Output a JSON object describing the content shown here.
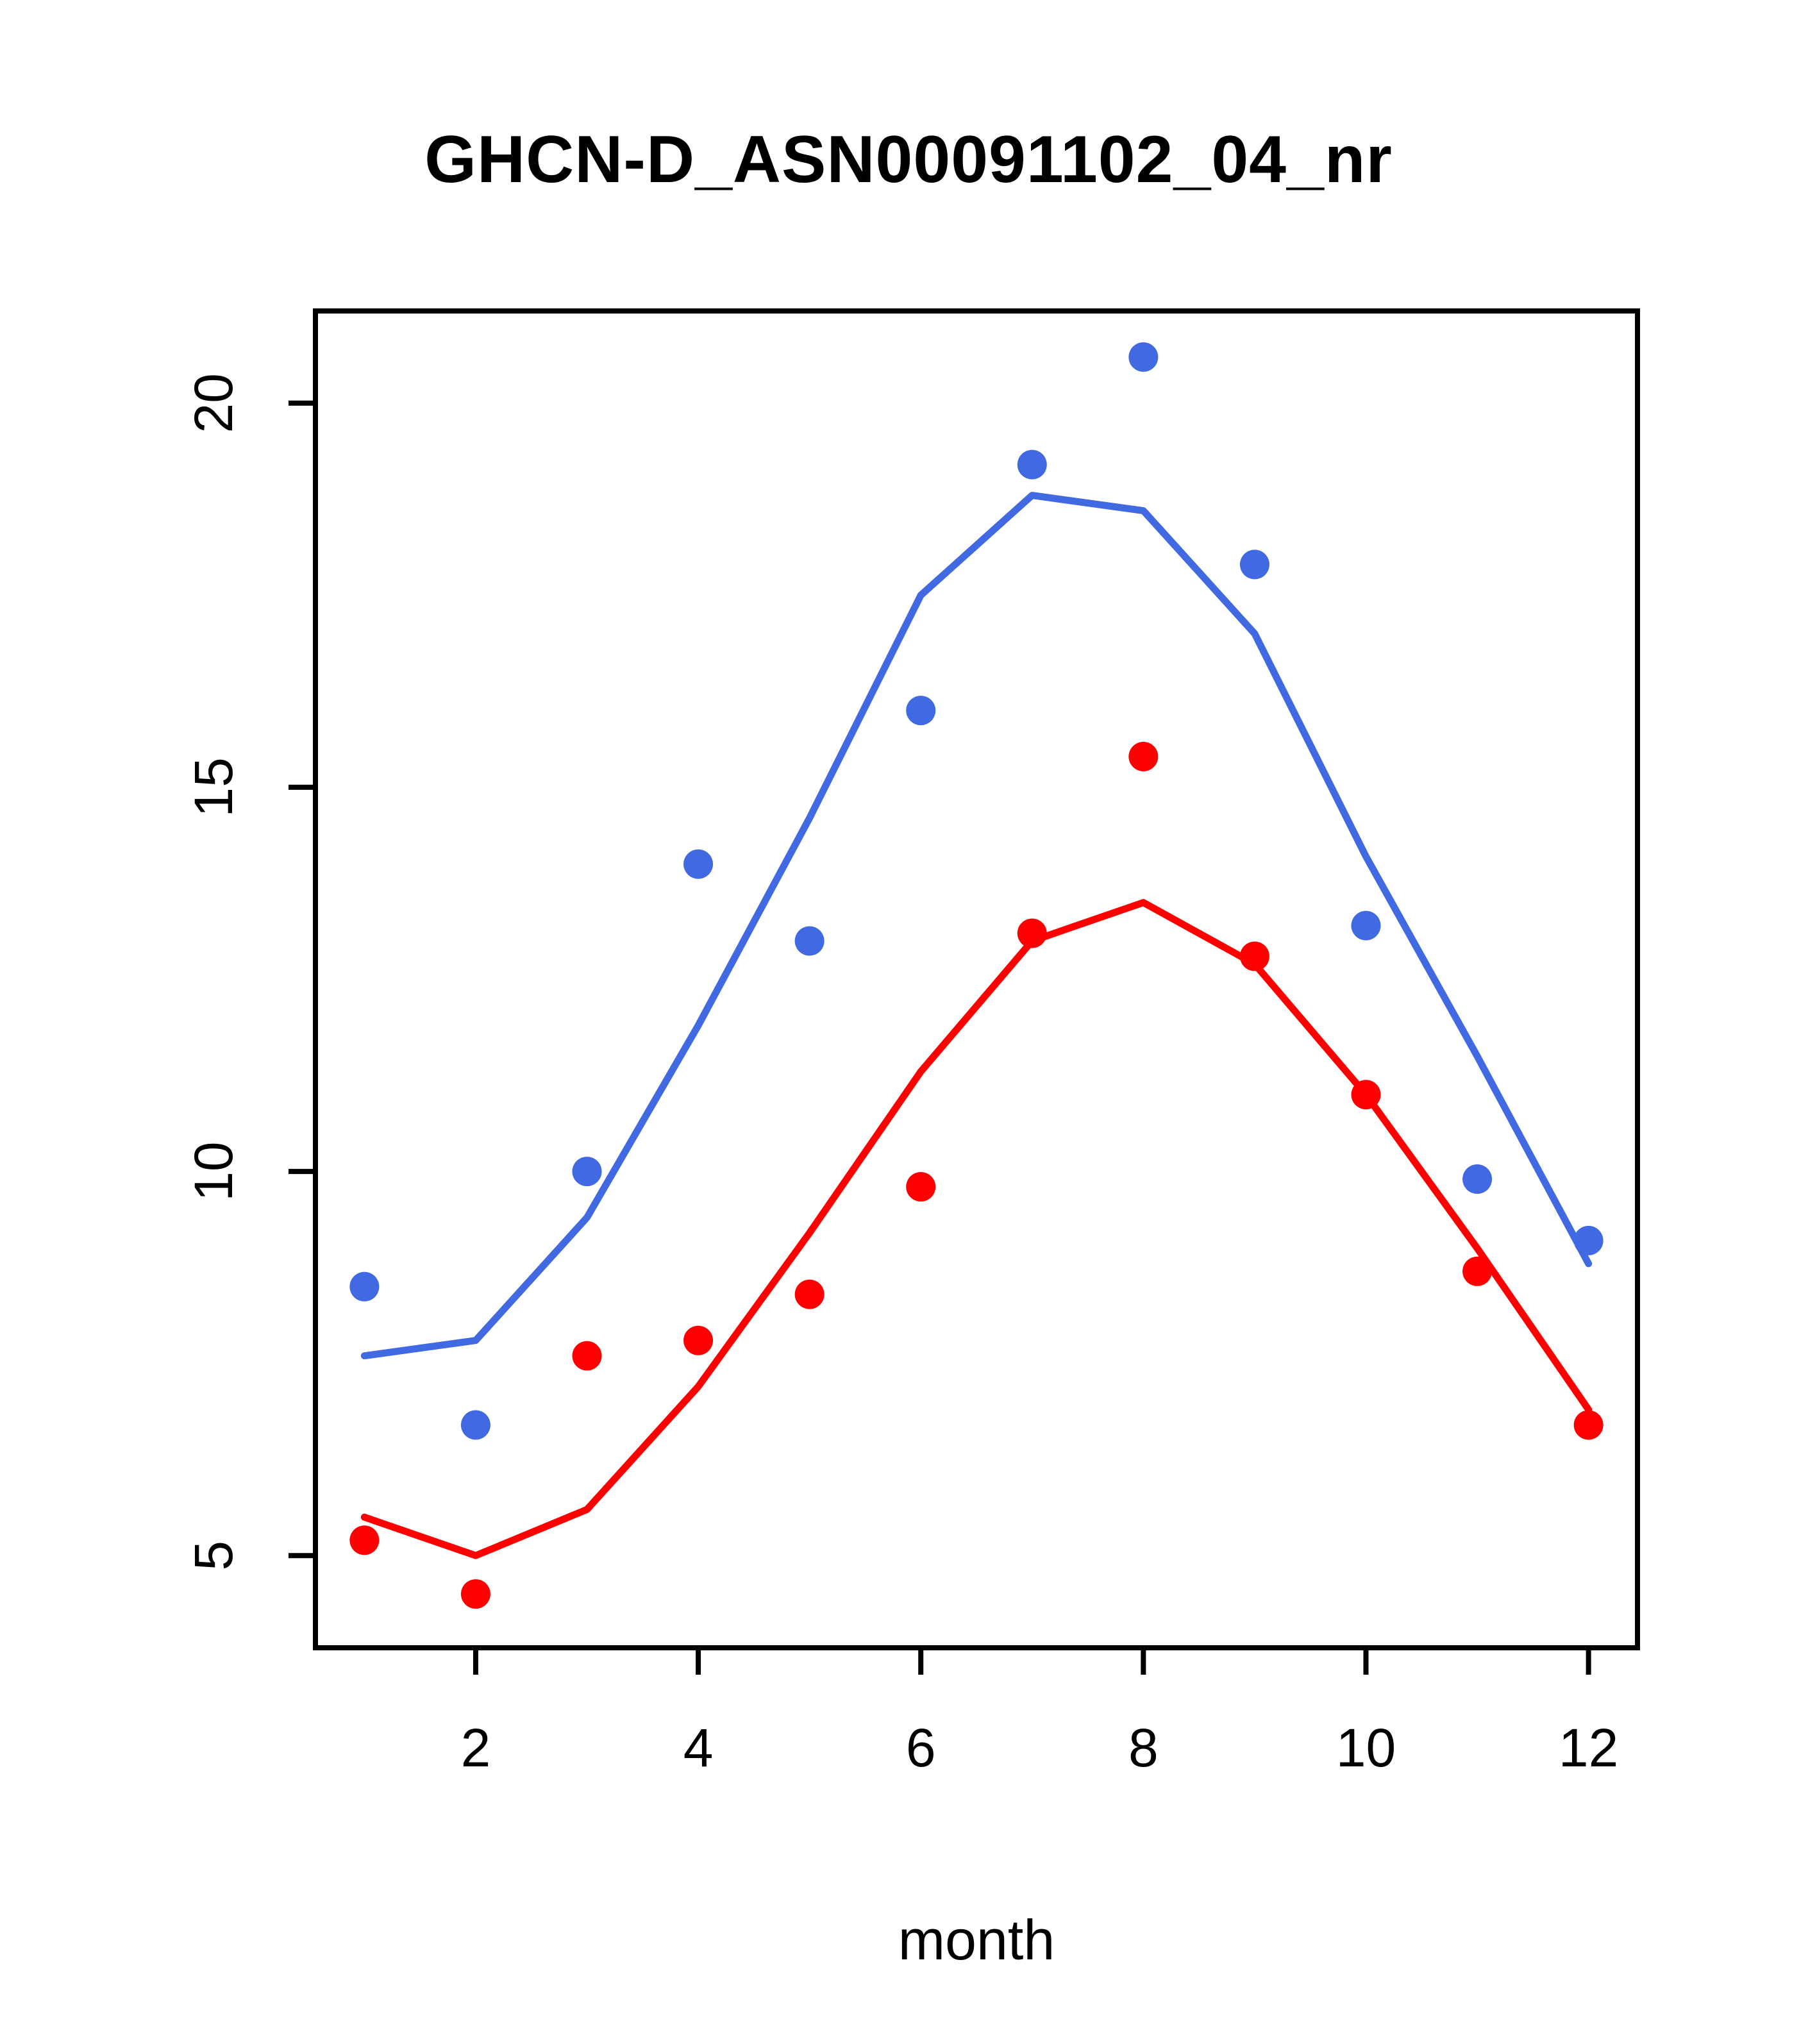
{
  "chart_data": {
    "type": "line",
    "title": "GHCN-D_ASN00091102_04_nr",
    "xlabel": "month",
    "ylabel": "",
    "x": [
      1,
      2,
      3,
      4,
      5,
      6,
      7,
      8,
      9,
      10,
      11,
      12
    ],
    "xticks": [
      2,
      4,
      6,
      8,
      10,
      12
    ],
    "yticks": [
      5,
      10,
      15,
      20
    ],
    "xlim": [
      0.56,
      12.44
    ],
    "ylim": [
      3.8,
      21.2
    ],
    "grid": false,
    "legend": "none",
    "colors": {
      "blue": "#4169E1",
      "red": "#FF0000",
      "axis": "#000000"
    },
    "series": [
      {
        "name": "blue-line-smooth",
        "type": "line",
        "color": "#4169E1",
        "values": [
          7.6,
          7.8,
          9.4,
          11.9,
          14.6,
          17.5,
          18.8,
          18.6,
          17.0,
          14.1,
          11.5,
          8.8
        ]
      },
      {
        "name": "red-line-smooth",
        "type": "line",
        "color": "#FF0000",
        "values": [
          5.5,
          5.0,
          5.6,
          7.2,
          9.2,
          11.3,
          13.0,
          13.5,
          12.7,
          11.0,
          9.0,
          6.9
        ]
      },
      {
        "name": "blue-points-monthly",
        "type": "points",
        "color": "#4169E1",
        "values": [
          8.5,
          6.7,
          10.0,
          14.0,
          13.0,
          16.0,
          19.2,
          20.6,
          17.9,
          13.2,
          9.9,
          9.1
        ]
      },
      {
        "name": "red-points-monthly",
        "type": "points",
        "color": "#FF0000",
        "values": [
          5.2,
          4.5,
          7.6,
          7.8,
          8.4,
          9.8,
          13.1,
          15.4,
          12.8,
          11.0,
          8.7,
          6.7
        ]
      }
    ]
  }
}
